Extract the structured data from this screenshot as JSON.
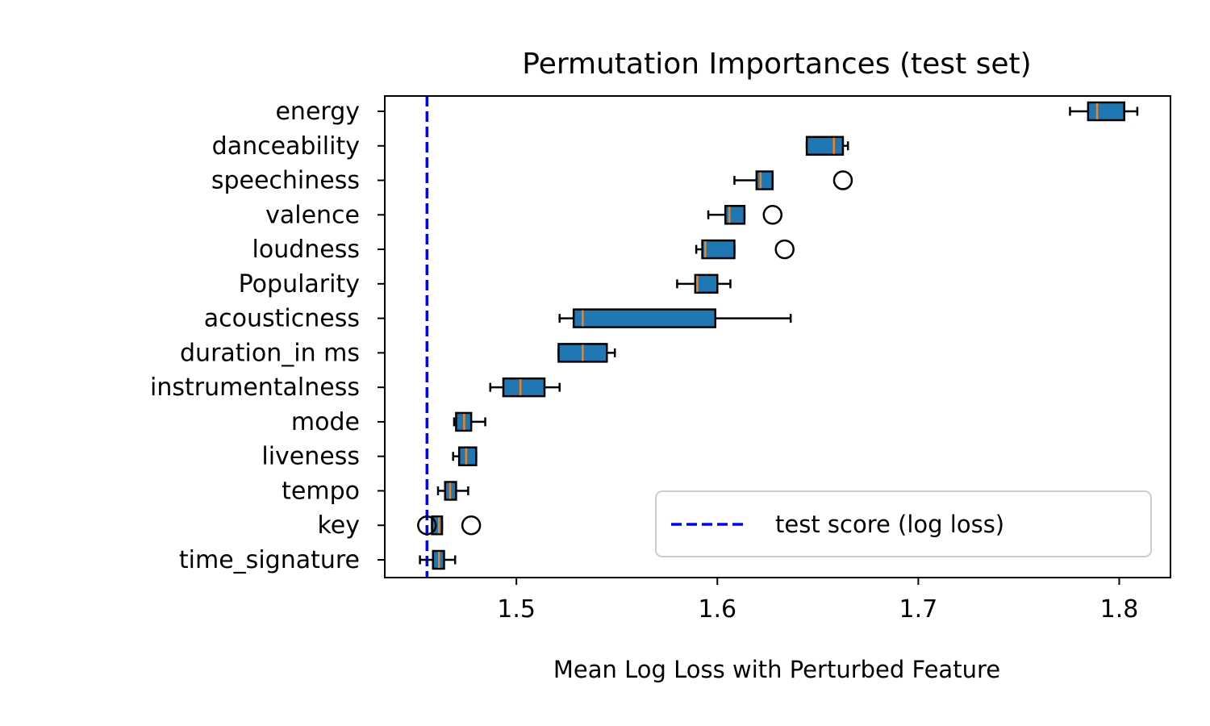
{
  "chart_data": {
    "type": "boxplot",
    "orientation": "horizontal",
    "title": "Permutation Importances (test set)",
    "xlabel": "Mean Log Loss with Perturbed Feature",
    "ylabel": "",
    "xlim": [
      1.4345,
      1.8255
    ],
    "xticks": [
      1.5,
      1.6,
      1.7,
      1.8
    ],
    "xtick_labels": [
      "1.5",
      "1.6",
      "1.7",
      "1.8"
    ],
    "grid": false,
    "legend": {
      "placement": "lower right",
      "entries": [
        {
          "label": "test score (log loss)",
          "style": "dashed",
          "color": "#0000ff"
        }
      ]
    },
    "reference_line": {
      "x": 1.4555,
      "label": "test score (log loss)",
      "color": "#0000ff",
      "style": "dashed"
    },
    "colors": {
      "box": "#1f77b4",
      "median": "#ff7f0e",
      "whisker": "#000000"
    },
    "features": [
      {
        "name": "energy",
        "wlow": 1.7755,
        "q1": 1.7845,
        "median": 1.789,
        "q3": 1.8025,
        "whigh": 1.809,
        "outliers": []
      },
      {
        "name": "danceability",
        "wlow": 1.6445,
        "q1": 1.6445,
        "median": 1.658,
        "q3": 1.6625,
        "whigh": 1.665,
        "outliers": []
      },
      {
        "name": "speechiness",
        "wlow": 1.6085,
        "q1": 1.6195,
        "median": 1.6215,
        "q3": 1.6275,
        "whigh": 1.6275,
        "outliers": [
          1.6625
        ]
      },
      {
        "name": "valence",
        "wlow": 1.5955,
        "q1": 1.604,
        "median": 1.606,
        "q3": 1.6135,
        "whigh": 1.6135,
        "outliers": [
          1.6275
        ]
      },
      {
        "name": "loudness",
        "wlow": 1.5895,
        "q1": 1.5925,
        "median": 1.594,
        "q3": 1.6085,
        "whigh": 1.6085,
        "outliers": [
          1.6335
        ]
      },
      {
        "name": "Popularity",
        "wlow": 1.58,
        "q1": 1.589,
        "median": 1.59,
        "q3": 1.6,
        "whigh": 1.6065,
        "outliers": []
      },
      {
        "name": "acousticness",
        "wlow": 1.5215,
        "q1": 1.5285,
        "median": 1.533,
        "q3": 1.599,
        "whigh": 1.6365,
        "outliers": []
      },
      {
        "name": "duration_in ms",
        "wlow": 1.521,
        "q1": 1.521,
        "median": 1.533,
        "q3": 1.545,
        "whigh": 1.549,
        "outliers": []
      },
      {
        "name": "instrumentalness",
        "wlow": 1.487,
        "q1": 1.4935,
        "median": 1.502,
        "q3": 1.514,
        "whigh": 1.5215,
        "outliers": []
      },
      {
        "name": "mode",
        "wlow": 1.469,
        "q1": 1.47,
        "median": 1.474,
        "q3": 1.4775,
        "whigh": 1.4845,
        "outliers": []
      },
      {
        "name": "liveness",
        "wlow": 1.4685,
        "q1": 1.4715,
        "median": 1.475,
        "q3": 1.48,
        "whigh": 1.48,
        "outliers": []
      },
      {
        "name": "tempo",
        "wlow": 1.461,
        "q1": 1.4645,
        "median": 1.467,
        "q3": 1.47,
        "whigh": 1.476,
        "outliers": []
      },
      {
        "name": "key",
        "wlow": 1.458,
        "q1": 1.458,
        "median": 1.4615,
        "q3": 1.463,
        "whigh": 1.463,
        "outliers": [
          1.4555,
          1.4775
        ]
      },
      {
        "name": "time_signature",
        "wlow": 1.452,
        "q1": 1.4585,
        "median": 1.4615,
        "q3": 1.464,
        "whigh": 1.4695,
        "outliers": []
      }
    ]
  }
}
